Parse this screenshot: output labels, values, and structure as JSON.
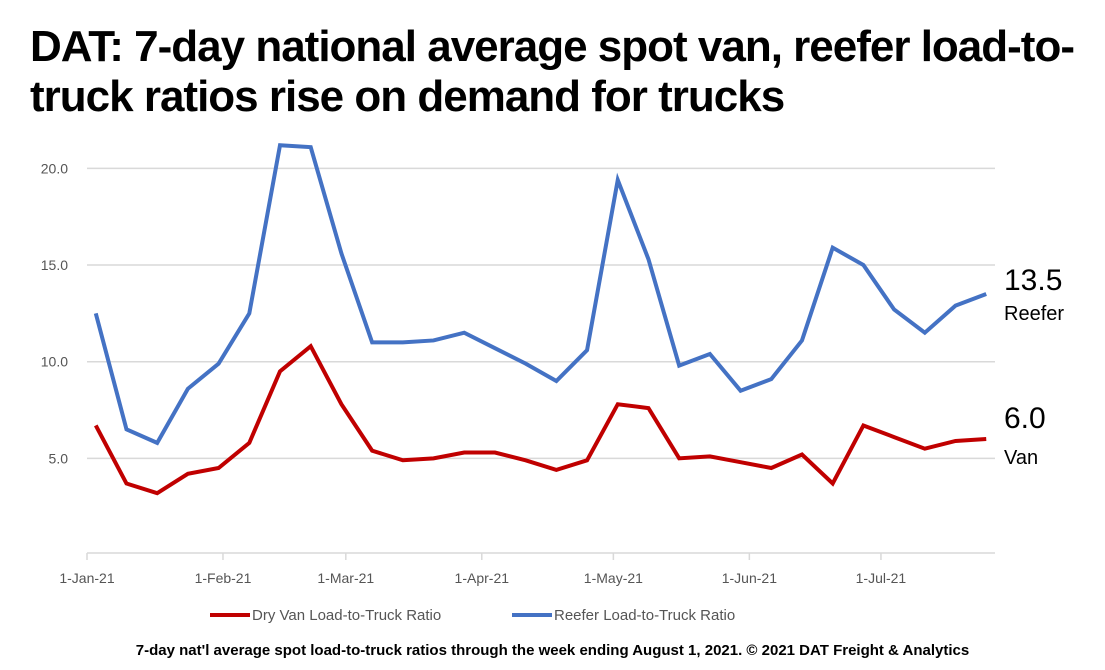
{
  "title": "DAT: 7-day national average spot van, reefer load-to-truck ratios rise on demand for trucks",
  "caption": "7-day nat'l average spot load-to-truck ratios through the week ending August 1, 2021. © 2021 DAT Freight & Analytics",
  "chart_data": {
    "type": "line",
    "title": "DAT: 7-day national average spot van, reefer load-to-truck ratios rise on demand for trucks",
    "xlabel": "",
    "ylabel": "",
    "ylim": [
      0,
      22
    ],
    "yticks": [
      "5.0",
      "10.0",
      "15.0",
      "20.0"
    ],
    "xticks": [
      {
        "date": "2021-01-01",
        "label": "1-Jan-21"
      },
      {
        "date": "2021-02-01",
        "label": "1-Feb-21"
      },
      {
        "date": "2021-03-01",
        "label": "1-Mar-21"
      },
      {
        "date": "2021-04-01",
        "label": "1-Apr-21"
      },
      {
        "date": "2021-05-01",
        "label": "1-May-21"
      },
      {
        "date": "2021-06-01",
        "label": "1-Jun-21"
      },
      {
        "date": "2021-07-01",
        "label": "1-Jul-21"
      }
    ],
    "xlim": [
      "2021-01-01",
      "2021-07-27"
    ],
    "grid": true,
    "legend": "bottom",
    "x": [
      "2021-01-03",
      "2021-01-10",
      "2021-01-17",
      "2021-01-24",
      "2021-01-31",
      "2021-02-07",
      "2021-02-14",
      "2021-02-21",
      "2021-02-28",
      "2021-03-07",
      "2021-03-14",
      "2021-03-21",
      "2021-03-28",
      "2021-04-04",
      "2021-04-11",
      "2021-04-18",
      "2021-04-25",
      "2021-05-02",
      "2021-05-09",
      "2021-05-16",
      "2021-05-23",
      "2021-05-30",
      "2021-06-06",
      "2021-06-13",
      "2021-06-20",
      "2021-06-27",
      "2021-07-04",
      "2021-07-11",
      "2021-07-18",
      "2021-07-25"
    ],
    "series": [
      {
        "name": "Dry Van Load-to-Truck Ratio",
        "color": "#C00000",
        "values": [
          6.7,
          3.7,
          3.2,
          4.2,
          4.5,
          5.8,
          9.5,
          10.8,
          7.8,
          5.4,
          4.9,
          5.0,
          5.3,
          5.3,
          4.9,
          4.4,
          4.9,
          7.8,
          7.6,
          5.0,
          5.1,
          4.8,
          4.5,
          5.2,
          3.7,
          6.7,
          6.1,
          5.5,
          5.9,
          6.0
        ],
        "end_value": "6.0",
        "end_label": "Van"
      },
      {
        "name": "Reefer Load-to-Truck Ratio",
        "color": "#4472C4",
        "values": [
          12.5,
          6.5,
          5.8,
          8.6,
          9.9,
          12.5,
          21.2,
          21.1,
          15.6,
          11.0,
          11.0,
          11.1,
          11.5,
          10.7,
          9.9,
          9.0,
          10.6,
          19.4,
          15.3,
          9.8,
          10.4,
          8.5,
          9.1,
          11.1,
          15.9,
          15.0,
          12.7,
          11.5,
          12.9,
          13.5
        ],
        "end_value": "13.5",
        "end_label": "Reefer"
      }
    ]
  }
}
